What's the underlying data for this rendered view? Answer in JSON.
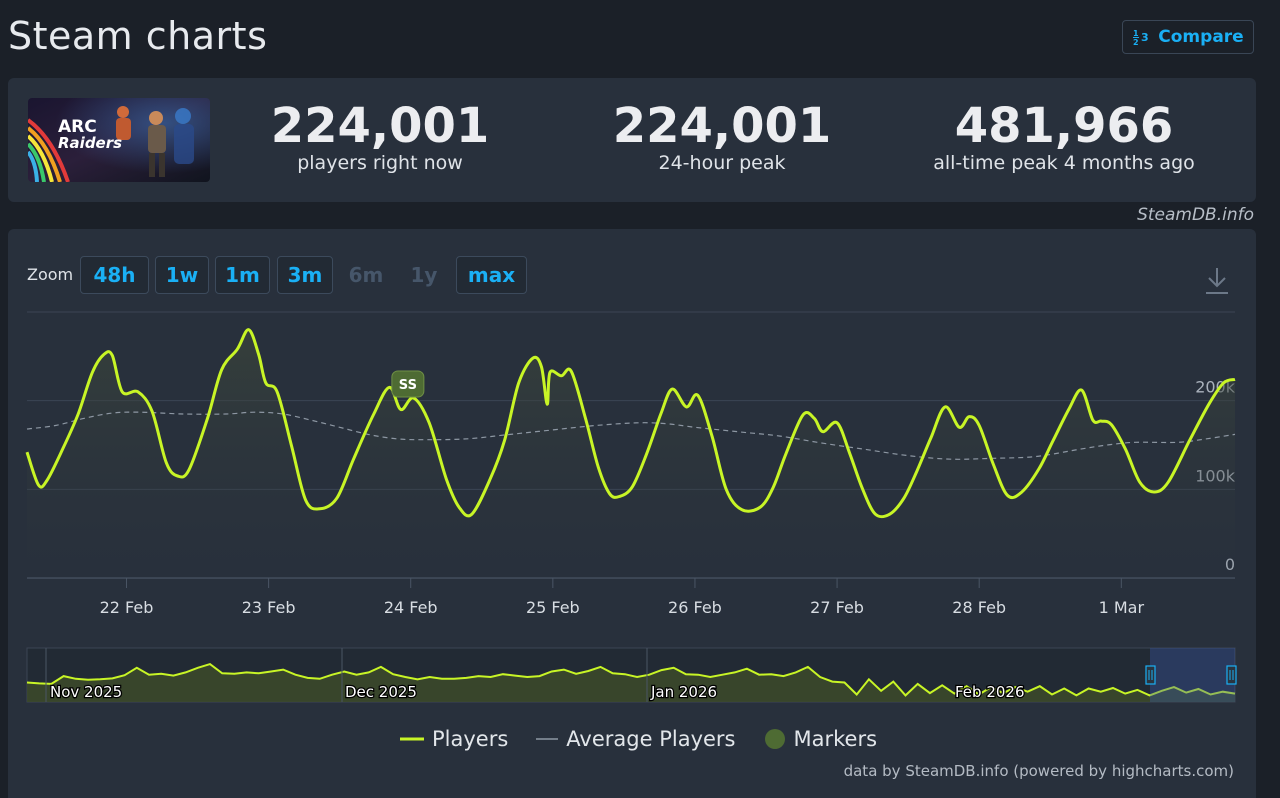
{
  "page": {
    "title": "Steam charts",
    "compare_label": "Compare",
    "credit_top": "SteamDB.info",
    "credit_bottom": "data by SteamDB.info (powered by highcharts.com)"
  },
  "game": {
    "art_text_1": "ARC",
    "art_text_2": "Raiders"
  },
  "stats": [
    {
      "value": "224,001",
      "label": "players right now"
    },
    {
      "value": "224,001",
      "label": "24-hour peak"
    },
    {
      "value": "481,966",
      "label": "all-time peak 4 months ago"
    }
  ],
  "zoom": {
    "label": "Zoom",
    "buttons": [
      {
        "label": "48h",
        "enabled": true
      },
      {
        "label": "1w",
        "enabled": true
      },
      {
        "label": "1m",
        "enabled": true
      },
      {
        "label": "3m",
        "enabled": true
      },
      {
        "label": "6m",
        "enabled": false
      },
      {
        "label": "1y",
        "enabled": false
      },
      {
        "label": "max",
        "enabled": true
      }
    ]
  },
  "legend": [
    {
      "label": "Players",
      "color": "#c8f526"
    },
    {
      "label": "Average Players",
      "color": "#8d97a3"
    },
    {
      "label": "Markers",
      "color": "#4e6b33"
    }
  ],
  "chart_data": {
    "type": "line",
    "ylim": [
      0,
      300000
    ],
    "yticks": [
      {
        "value": 0,
        "label": "0"
      },
      {
        "value": 100000,
        "label": "100k"
      },
      {
        "value": 200000,
        "label": "200k"
      }
    ],
    "xlim": [
      21.3,
      29.8
    ],
    "xticks": [
      {
        "value": 22,
        "label": "22 Feb"
      },
      {
        "value": 23,
        "label": "23 Feb"
      },
      {
        "value": 24,
        "label": "24 Feb"
      },
      {
        "value": 25,
        "label": "25 Feb"
      },
      {
        "value": 26,
        "label": "26 Feb"
      },
      {
        "value": 27,
        "label": "27 Feb"
      },
      {
        "value": 28,
        "label": "28 Feb"
      },
      {
        "value": 29,
        "label": "1 Mar"
      }
    ],
    "series": [
      {
        "name": "Players",
        "color": "#c8f526",
        "points": [
          [
            21.3,
            142000
          ],
          [
            21.38,
            105000
          ],
          [
            21.44,
            110000
          ],
          [
            21.55,
            145000
          ],
          [
            21.66,
            185000
          ],
          [
            21.76,
            232000
          ],
          [
            21.84,
            252000
          ],
          [
            21.9,
            251000
          ],
          [
            21.97,
            210000
          ],
          [
            22.08,
            210000
          ],
          [
            22.18,
            188000
          ],
          [
            22.28,
            130000
          ],
          [
            22.36,
            115000
          ],
          [
            22.44,
            122000
          ],
          [
            22.57,
            180000
          ],
          [
            22.67,
            235000
          ],
          [
            22.78,
            258000
          ],
          [
            22.86,
            280000
          ],
          [
            22.93,
            252000
          ],
          [
            22.98,
            220000
          ],
          [
            23.06,
            210000
          ],
          [
            23.16,
            150000
          ],
          [
            23.26,
            88000
          ],
          [
            23.36,
            78000
          ],
          [
            23.48,
            90000
          ],
          [
            23.6,
            135000
          ],
          [
            23.74,
            185000
          ],
          [
            23.85,
            215000
          ],
          [
            23.93,
            190000
          ],
          [
            24.02,
            203000
          ],
          [
            24.13,
            175000
          ],
          [
            24.25,
            112000
          ],
          [
            24.34,
            80000
          ],
          [
            24.43,
            72000
          ],
          [
            24.56,
            112000
          ],
          [
            24.66,
            155000
          ],
          [
            24.76,
            220000
          ],
          [
            24.86,
            248000
          ],
          [
            24.92,
            238000
          ],
          [
            24.96,
            196000
          ],
          [
            24.98,
            232000
          ],
          [
            25.06,
            228000
          ],
          [
            25.13,
            233000
          ],
          [
            25.23,
            180000
          ],
          [
            25.32,
            125000
          ],
          [
            25.4,
            95000
          ],
          [
            25.47,
            92000
          ],
          [
            25.56,
            103000
          ],
          [
            25.66,
            140000
          ],
          [
            25.76,
            185000
          ],
          [
            25.84,
            213000
          ],
          [
            25.94,
            193000
          ],
          [
            26.02,
            206000
          ],
          [
            26.12,
            160000
          ],
          [
            26.22,
            100000
          ],
          [
            26.33,
            77000
          ],
          [
            26.46,
            80000
          ],
          [
            26.55,
            102000
          ],
          [
            26.64,
            140000
          ],
          [
            26.76,
            184000
          ],
          [
            26.84,
            180000
          ],
          [
            26.9,
            165000
          ],
          [
            27.0,
            175000
          ],
          [
            27.09,
            140000
          ],
          [
            27.18,
            100000
          ],
          [
            27.27,
            72000
          ],
          [
            27.37,
            72000
          ],
          [
            27.47,
            90000
          ],
          [
            27.56,
            120000
          ],
          [
            27.66,
            158000
          ],
          [
            27.76,
            193000
          ],
          [
            27.86,
            170000
          ],
          [
            27.93,
            182000
          ],
          [
            28.0,
            172000
          ],
          [
            28.1,
            128000
          ],
          [
            28.2,
            93000
          ],
          [
            28.3,
            97000
          ],
          [
            28.42,
            123000
          ],
          [
            28.52,
            155000
          ],
          [
            28.63,
            190000
          ],
          [
            28.72,
            212000
          ],
          [
            28.8,
            178000
          ],
          [
            28.86,
            177000
          ],
          [
            28.93,
            173000
          ],
          [
            29.03,
            145000
          ],
          [
            29.13,
            108000
          ],
          [
            29.23,
            97000
          ],
          [
            29.33,
            108000
          ],
          [
            29.48,
            155000
          ],
          [
            29.62,
            197000
          ],
          [
            29.72,
            220000
          ],
          [
            29.8,
            224001
          ]
        ]
      },
      {
        "name": "Average Players",
        "color": "#8d97a3",
        "points": [
          [
            21.3,
            168000
          ],
          [
            21.5,
            172000
          ],
          [
            21.7,
            180000
          ],
          [
            21.9,
            186000
          ],
          [
            22.1,
            187000
          ],
          [
            22.4,
            185000
          ],
          [
            22.7,
            185000
          ],
          [
            22.9,
            187000
          ],
          [
            23.1,
            185000
          ],
          [
            23.3,
            178000
          ],
          [
            23.5,
            170000
          ],
          [
            23.7,
            162000
          ],
          [
            23.9,
            157000
          ],
          [
            24.1,
            156000
          ],
          [
            24.4,
            157000
          ],
          [
            24.7,
            162000
          ],
          [
            25.0,
            167000
          ],
          [
            25.3,
            172000
          ],
          [
            25.6,
            175000
          ],
          [
            25.8,
            174000
          ],
          [
            26.0,
            170000
          ],
          [
            26.3,
            165000
          ],
          [
            26.6,
            160000
          ],
          [
            26.9,
            152000
          ],
          [
            27.2,
            145000
          ],
          [
            27.5,
            138000
          ],
          [
            27.8,
            134000
          ],
          [
            28.1,
            135000
          ],
          [
            28.4,
            137000
          ],
          [
            28.7,
            145000
          ],
          [
            28.9,
            150000
          ],
          [
            29.1,
            153000
          ],
          [
            29.4,
            153000
          ],
          [
            29.6,
            157000
          ],
          [
            29.8,
            162000
          ]
        ]
      }
    ],
    "markers": [
      {
        "x": 23.98,
        "label": "SS"
      }
    ],
    "navigator": {
      "labels": [
        "Nov 2025",
        "Dec 2025",
        "Jan 2026",
        "Feb 2026"
      ],
      "players_series": [
        38,
        36,
        35,
        52,
        46,
        44,
        45,
        47,
        54,
        70,
        55,
        57,
        53,
        60,
        70,
        78,
        58,
        57,
        60,
        58,
        62,
        66,
        55,
        48,
        46,
        55,
        62,
        55,
        60,
        72,
        56,
        50,
        45,
        50,
        46,
        46,
        48,
        52,
        50,
        56,
        53,
        50,
        52,
        62,
        66,
        57,
        63,
        72,
        58,
        56,
        50,
        55,
        65,
        70,
        56,
        55,
        50,
        55,
        60,
        68,
        55,
        56,
        52,
        60,
        72,
        50,
        40,
        38,
        12,
        45,
        20,
        40,
        10,
        35,
        15,
        32,
        14,
        30,
        12,
        28,
        15,
        28,
        18,
        30,
        12,
        25,
        10,
        25,
        18,
        26,
        14,
        22,
        10,
        20,
        28,
        16,
        24,
        12,
        18,
        14
      ]
    }
  }
}
